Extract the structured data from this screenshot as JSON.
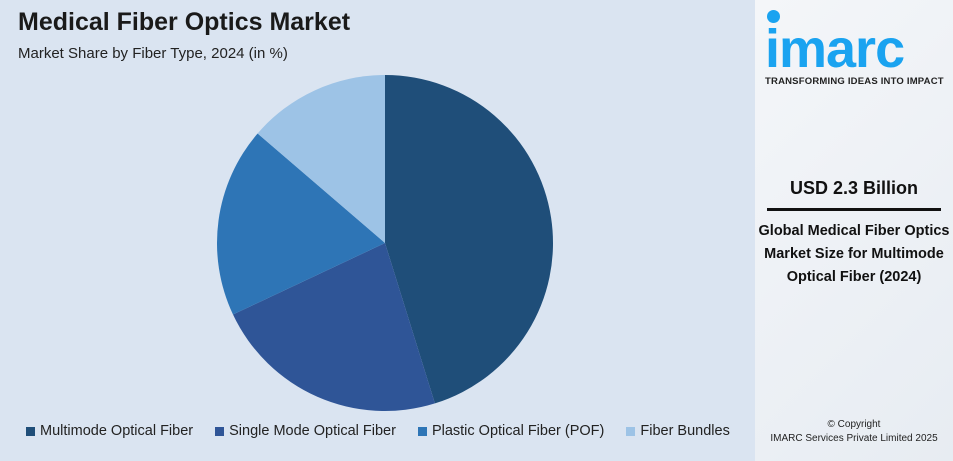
{
  "title": "Medical Fiber Optics Market",
  "subtitle": "Market Share by Fiber Type, 2024 (in %)",
  "chart_data": {
    "type": "pie",
    "title": "Medical Fiber Optics Market",
    "subtitle": "Market Share by Fiber Type, 2024 (in %)",
    "categories": [
      "Multimode Optical Fiber",
      "Single Mode Optical Fiber",
      "Plastic Optical Fiber (POF)",
      "Fiber Bundles"
    ],
    "values": [
      45.2,
      22.8,
      18.3,
      13.7
    ],
    "colors": [
      "#1f4e79",
      "#2f5597",
      "#2e75b6",
      "#9dc3e6"
    ],
    "legend": "bottom"
  },
  "panel": {
    "logo": "imarc",
    "tagline": "TRANSFORMING IDEAS INTO IMPACT",
    "value": "USD 2.3 Billion",
    "description": "Global Medical Fiber Optics Market Size for Multimode Optical Fiber (2024)",
    "copyright": "© Copyright",
    "company": "IMARC Services Private Limited 2025"
  }
}
